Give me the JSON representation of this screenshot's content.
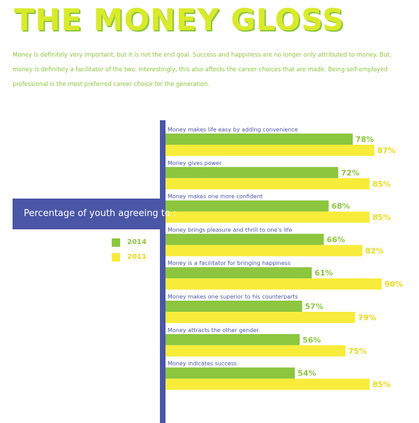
{
  "title": "THE MONEY GLOSS",
  "intro": "Money is definitely very important, but it is not the end goal. Success and happiness are no longer only attributed to money. But, money is definitely a facilitator of the two. Interestingly, this also affects the career choices that are made. Being self-employed professional is the most preferred career choice for the generation.",
  "colors": {
    "green": "#8cc63f",
    "yellow": "#f7ec3a",
    "yellow_text": "#e9da1c",
    "axis": "#4a56a6",
    "label": "#4a56a6"
  },
  "chart_data": {
    "type": "bar",
    "orientation": "horizontal",
    "title": "Percentage of youth agreeing to :",
    "value_suffix": "%",
    "xlim": [
      0,
      100
    ],
    "grid": false,
    "legend_position": "left",
    "categories": [
      "Money makes life easy by adding convenience",
      "Money gives power",
      "Money makes one more confident",
      "Money brings pleasure and thrill to one's life",
      "Money is a facilitator for bringing happiness",
      "Money makes one superior to his counterparts",
      "Money attracts the other gender",
      "Money indicates success"
    ],
    "series": [
      {
        "name": "2014",
        "color": "#8cc63f",
        "values": [
          78,
          72,
          68,
          66,
          61,
          57,
          56,
          54
        ]
      },
      {
        "name": "2011",
        "color": "#f7ec3a",
        "values": [
          87,
          85,
          85,
          82,
          90,
          79,
          75,
          85
        ]
      }
    ]
  }
}
